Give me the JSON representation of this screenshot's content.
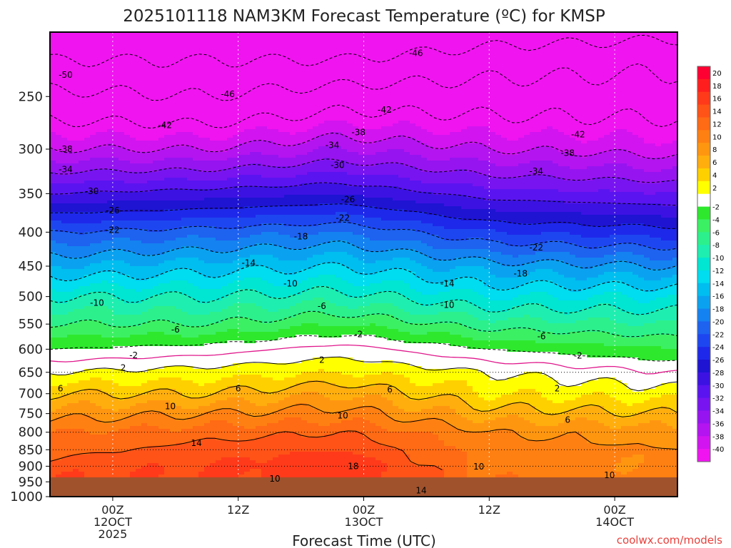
{
  "chart_data": {
    "type": "heatmap",
    "title": "2025101118 NAM3KM Forecast Temperature (ºC) for KMSP",
    "xlabel": "Forecast Time (UTC)",
    "ylabel": "",
    "x_range_hours": [
      0,
      60
    ],
    "y_range_hpa": [
      200,
      1000
    ],
    "y_ticks": [
      250,
      300,
      350,
      400,
      450,
      500,
      550,
      600,
      650,
      700,
      750,
      800,
      850,
      900,
      950,
      1000
    ],
    "x_ticks": [
      {
        "hour": 6,
        "label": "00Z",
        "sub1": "12OCT",
        "sub2": "2025"
      },
      {
        "hour": 18,
        "label": "12Z",
        "sub1": "",
        "sub2": ""
      },
      {
        "hour": 30,
        "label": "00Z",
        "sub1": "13OCT",
        "sub2": ""
      },
      {
        "hour": 42,
        "label": "12Z",
        "sub1": "",
        "sub2": ""
      },
      {
        "hour": 54,
        "label": "00Z",
        "sub1": "14OCT",
        "sub2": ""
      }
    ],
    "isotherm_profile": [
      {
        "hour": 0,
        "levels": [
          [
            220,
            -50
          ],
          [
            250,
            -45
          ],
          [
            300,
            -38
          ],
          [
            350,
            -30
          ],
          [
            400,
            -22
          ],
          [
            450,
            -16
          ],
          [
            500,
            -10
          ],
          [
            550,
            -6
          ],
          [
            600,
            -2
          ],
          [
            650,
            2
          ],
          [
            700,
            6
          ],
          [
            750,
            9
          ],
          [
            800,
            12
          ],
          [
            850,
            13
          ],
          [
            900,
            15
          ],
          [
            950,
            16
          ],
          [
            1000,
            17
          ]
        ]
      },
      {
        "hour": 15,
        "levels": [
          [
            220,
            -50
          ],
          [
            250,
            -46
          ],
          [
            300,
            -38
          ],
          [
            350,
            -29
          ],
          [
            400,
            -21
          ],
          [
            450,
            -15
          ],
          [
            500,
            -10
          ],
          [
            550,
            -6
          ],
          [
            600,
            -1
          ],
          [
            650,
            3
          ],
          [
            700,
            6
          ],
          [
            750,
            10
          ],
          [
            800,
            13
          ],
          [
            850,
            15
          ],
          [
            900,
            16
          ],
          [
            950,
            16
          ],
          [
            1000,
            17
          ]
        ]
      },
      {
        "hour": 28,
        "levels": [
          [
            220,
            -50
          ],
          [
            250,
            -44
          ],
          [
            300,
            -36
          ],
          [
            350,
            -28
          ],
          [
            400,
            -20
          ],
          [
            450,
            -14
          ],
          [
            500,
            -9
          ],
          [
            550,
            -4
          ],
          [
            600,
            1
          ],
          [
            650,
            4
          ],
          [
            700,
            8
          ],
          [
            750,
            11
          ],
          [
            800,
            14
          ],
          [
            850,
            16
          ],
          [
            900,
            18
          ],
          [
            950,
            17
          ],
          [
            1000,
            18
          ]
        ]
      },
      {
        "hour": 42,
        "levels": [
          [
            220,
            -48
          ],
          [
            250,
            -44
          ],
          [
            300,
            -38
          ],
          [
            350,
            -31
          ],
          [
            400,
            -24
          ],
          [
            450,
            -17
          ],
          [
            500,
            -12
          ],
          [
            550,
            -7
          ],
          [
            600,
            -2
          ],
          [
            650,
            2
          ],
          [
            700,
            4
          ],
          [
            750,
            7
          ],
          [
            800,
            10
          ],
          [
            850,
            11
          ],
          [
            900,
            11
          ],
          [
            950,
            12
          ],
          [
            1000,
            13
          ]
        ]
      },
      {
        "hour": 60,
        "levels": [
          [
            220,
            -47
          ],
          [
            250,
            -44
          ],
          [
            300,
            -39
          ],
          [
            350,
            -32
          ],
          [
            400,
            -25
          ],
          [
            450,
            -18
          ],
          [
            500,
            -12
          ],
          [
            550,
            -8
          ],
          [
            600,
            -4
          ],
          [
            650,
            0
          ],
          [
            700,
            3
          ],
          [
            750,
            6
          ],
          [
            800,
            9
          ],
          [
            850,
            10
          ],
          [
            900,
            10
          ],
          [
            950,
            11
          ],
          [
            1000,
            12
          ]
        ]
      }
    ],
    "contour_labels": [
      {
        "text": "-50",
        "hour": 1.5,
        "hpa": 232
      },
      {
        "text": "-46",
        "hour": 17,
        "hpa": 248
      },
      {
        "text": "-46",
        "hour": 35,
        "hpa": 215
      },
      {
        "text": "-42",
        "hour": 11,
        "hpa": 276
      },
      {
        "text": "-42",
        "hour": 32,
        "hpa": 262
      },
      {
        "text": "-42",
        "hour": 50.5,
        "hpa": 285
      },
      {
        "text": "-38",
        "hour": 1.5,
        "hpa": 300
      },
      {
        "text": "-38",
        "hour": 29.5,
        "hpa": 283
      },
      {
        "text": "-38",
        "hour": 49.5,
        "hpa": 304
      },
      {
        "text": "-34",
        "hour": 1.5,
        "hpa": 322
      },
      {
        "text": "-34",
        "hour": 27,
        "hpa": 296
      },
      {
        "text": "-34",
        "hour": 46.5,
        "hpa": 324
      },
      {
        "text": "-30",
        "hour": 4,
        "hpa": 347
      },
      {
        "text": "-30",
        "hour": 27.5,
        "hpa": 317
      },
      {
        "text": "-26",
        "hour": 6,
        "hpa": 371
      },
      {
        "text": "-26",
        "hour": 28.5,
        "hpa": 357
      },
      {
        "text": "-22",
        "hour": 6,
        "hpa": 397
      },
      {
        "text": "-22",
        "hour": 28,
        "hpa": 381
      },
      {
        "text": "-22",
        "hour": 46.5,
        "hpa": 422
      },
      {
        "text": "-18",
        "hour": 24,
        "hpa": 406
      },
      {
        "text": "-18",
        "hour": 45,
        "hpa": 462
      },
      {
        "text": "-14",
        "hour": 19,
        "hpa": 445
      },
      {
        "text": "-14",
        "hour": 38,
        "hpa": 478
      },
      {
        "text": "-10",
        "hour": 4.5,
        "hpa": 511
      },
      {
        "text": "-10",
        "hour": 23,
        "hpa": 478
      },
      {
        "text": "-10",
        "hour": 38,
        "hpa": 515
      },
      {
        "text": "-6",
        "hour": 12,
        "hpa": 561
      },
      {
        "text": "-6",
        "hour": 26,
        "hpa": 517
      },
      {
        "text": "-6",
        "hour": 47,
        "hpa": 574
      },
      {
        "text": "-2",
        "hour": 8,
        "hpa": 613
      },
      {
        "text": "-2",
        "hour": 29.5,
        "hpa": 570
      },
      {
        "text": "-2",
        "hour": 50.5,
        "hpa": 614
      },
      {
        "text": "2",
        "hour": 7,
        "hpa": 640
      },
      {
        "text": "2",
        "hour": 26,
        "hpa": 623
      },
      {
        "text": "2",
        "hour": 48.5,
        "hpa": 688
      },
      {
        "text": "6",
        "hour": 1,
        "hpa": 688
      },
      {
        "text": "6",
        "hour": 18,
        "hpa": 688
      },
      {
        "text": "6",
        "hour": 32.5,
        "hpa": 690
      },
      {
        "text": "6",
        "hour": 49.5,
        "hpa": 767
      },
      {
        "text": "10",
        "hour": 11.5,
        "hpa": 731
      },
      {
        "text": "10",
        "hour": 28,
        "hpa": 755
      },
      {
        "text": "10",
        "hour": 41,
        "hpa": 901
      },
      {
        "text": "10",
        "hour": 21.5,
        "hpa": 940
      },
      {
        "text": "10",
        "hour": 53.5,
        "hpa": 928
      },
      {
        "text": "14",
        "hour": 14,
        "hpa": 831
      },
      {
        "text": "14",
        "hour": 35.5,
        "hpa": 979
      },
      {
        "text": "18",
        "hour": 29,
        "hpa": 900
      }
    ],
    "colorbar_ticks": [
      20,
      18,
      16,
      14,
      12,
      10,
      8,
      6,
      4,
      2,
      -2,
      -4,
      -6,
      -8,
      -10,
      -12,
      -14,
      -16,
      -18,
      -20,
      -22,
      -24,
      -26,
      -28,
      -30,
      -32,
      -34,
      -36,
      -38,
      -40
    ],
    "colorbar_colors": [
      "#ff0032",
      "#ff1e1e",
      "#ff3a1a",
      "#ff5318",
      "#ff6a14",
      "#ff8012",
      "#ff9610",
      "#ffae0e",
      "#ffd000",
      "#ffff00",
      "#ffffff",
      "#2ee82e",
      "#3cf064",
      "#2cf08c",
      "#1eeeb0",
      "#00e6d2",
      "#00dcf0",
      "#00bef0",
      "#0aa2f0",
      "#1482f0",
      "#1e62f0",
      "#1e46f0",
      "#1e28ea",
      "#1e14d2",
      "#3c12e2",
      "#5a14f0",
      "#7814f0",
      "#9614f0",
      "#b414f0",
      "#d214f0",
      "#f014f0"
    ],
    "credit": "coolwx.com/models"
  }
}
